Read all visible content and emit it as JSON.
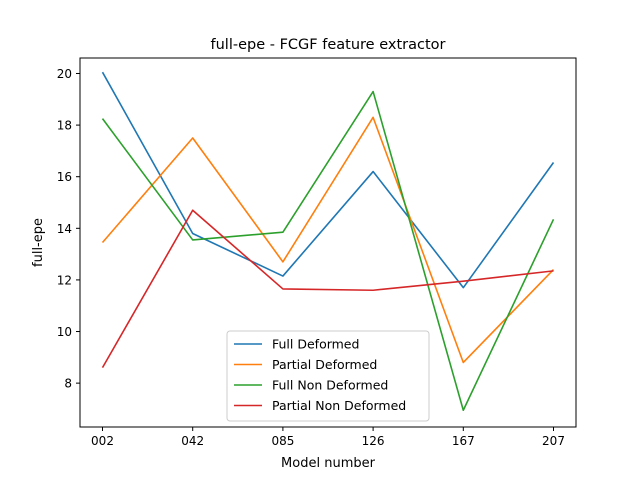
{
  "chart_data": {
    "type": "line",
    "title": "full-epe - FCGF feature extractor",
    "xlabel": "Model number",
    "ylabel": "full-epe",
    "categories": [
      "002",
      "042",
      "085",
      "126",
      "167",
      "207"
    ],
    "ylim": [
      6.3,
      20.6
    ],
    "yticks": [
      8,
      10,
      12,
      14,
      16,
      18,
      20
    ],
    "grid": false,
    "legend_position": "lower-center",
    "series": [
      {
        "name": "Full Deformed",
        "color": "#1f77b4",
        "values": [
          20.05,
          13.8,
          12.15,
          16.2,
          11.7,
          16.55
        ]
      },
      {
        "name": "Partial Deformed",
        "color": "#ff7f0e",
        "values": [
          13.45,
          17.5,
          12.7,
          18.3,
          8.8,
          12.4
        ]
      },
      {
        "name": "Full Non Deformed",
        "color": "#2ca02c",
        "values": [
          18.25,
          13.55,
          13.85,
          19.3,
          6.95,
          14.35
        ]
      },
      {
        "name": "Partial Non Deformed",
        "color": "#d62728",
        "values": [
          8.6,
          14.7,
          11.65,
          11.6,
          11.95,
          12.35
        ]
      }
    ]
  }
}
